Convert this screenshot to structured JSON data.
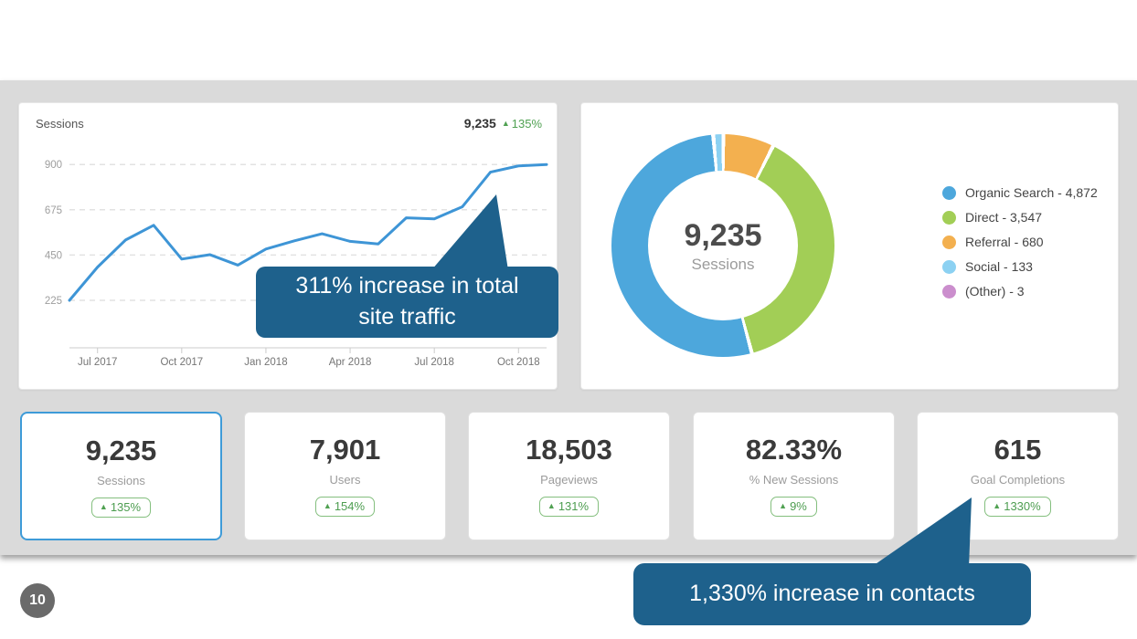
{
  "page": {
    "number": "10"
  },
  "colors": {
    "callout_blue": "#1E618C",
    "positive_green": "#50A152",
    "positive_dark_green": "#3E8F41",
    "line_blue": "#3E95D6",
    "selected_card_border": "#3E9BD8",
    "panel_gray": "#DADADA"
  },
  "chart_data": [
    {
      "type": "line",
      "title": "Sessions",
      "total": "9,235",
      "change": "135%",
      "x": [
        "Jun 2017",
        "Jul 2017",
        "Aug 2017",
        "Sep 2017",
        "Oct 2017",
        "Nov 2017",
        "Dec 2017",
        "Jan 2018",
        "Feb 2018",
        "Mar 2018",
        "Apr 2018",
        "May 2018",
        "Jun 2018",
        "Jul 2018",
        "Aug 2018",
        "Sep 2018",
        "Oct 2018",
        "Nov 2018"
      ],
      "values": [
        225,
        390,
        525,
        598,
        430,
        452,
        400,
        480,
        520,
        556,
        518,
        505,
        635,
        630,
        690,
        862,
        893,
        900
      ],
      "x_tick_labels": [
        "Jul 2017",
        "Oct 2017",
        "Jan 2018",
        "Apr 2018",
        "Jul 2018",
        "Oct 2018"
      ],
      "x_tick_indices": [
        1,
        4,
        7,
        10,
        13,
        16
      ],
      "y_ticks": [
        225,
        450,
        675,
        900
      ],
      "ylim": [
        225,
        900
      ],
      "grid": "horizontal-dashed",
      "line_color": "#3E95D6"
    },
    {
      "type": "donut",
      "center_value": "9,235",
      "center_label": "Sessions",
      "segments": [
        {
          "label": "Organic Search",
          "value": 4872,
          "display": "Organic Search - 4,872",
          "color": "#4DA7DC"
        },
        {
          "label": "Direct",
          "value": 3547,
          "display": "Direct - 3,547",
          "color": "#A2CE56"
        },
        {
          "label": "Referral",
          "value": 680,
          "display": "Referral - 680",
          "color": "#F3B04F"
        },
        {
          "label": "Social",
          "value": 133,
          "display": "Social - 133",
          "color": "#8CD1F2"
        },
        {
          "label": "(Other)",
          "value": 3,
          "display": "(Other) - 3",
          "color": "#CB8ECD"
        }
      ],
      "draw_order_clockwise_from_top": [
        "Social",
        "Referral",
        "Direct",
        "Organic Search"
      ],
      "legend_position": "right"
    }
  ],
  "stats": [
    {
      "value": "9,235",
      "label": "Sessions",
      "change": "135%",
      "selected": true
    },
    {
      "value": "7,901",
      "label": "Users",
      "change": "154%"
    },
    {
      "value": "18,503",
      "label": "Pageviews",
      "change": "131%"
    },
    {
      "value": "82.33%",
      "label": "% New Sessions",
      "change": "9%"
    },
    {
      "value": "615",
      "label": "Goal Completions",
      "change": "1330%"
    }
  ],
  "callouts": {
    "traffic": "311% increase in total site traffic",
    "contacts": "1,330% increase in contacts"
  },
  "glyphs": {
    "up_arrow": "▲"
  }
}
